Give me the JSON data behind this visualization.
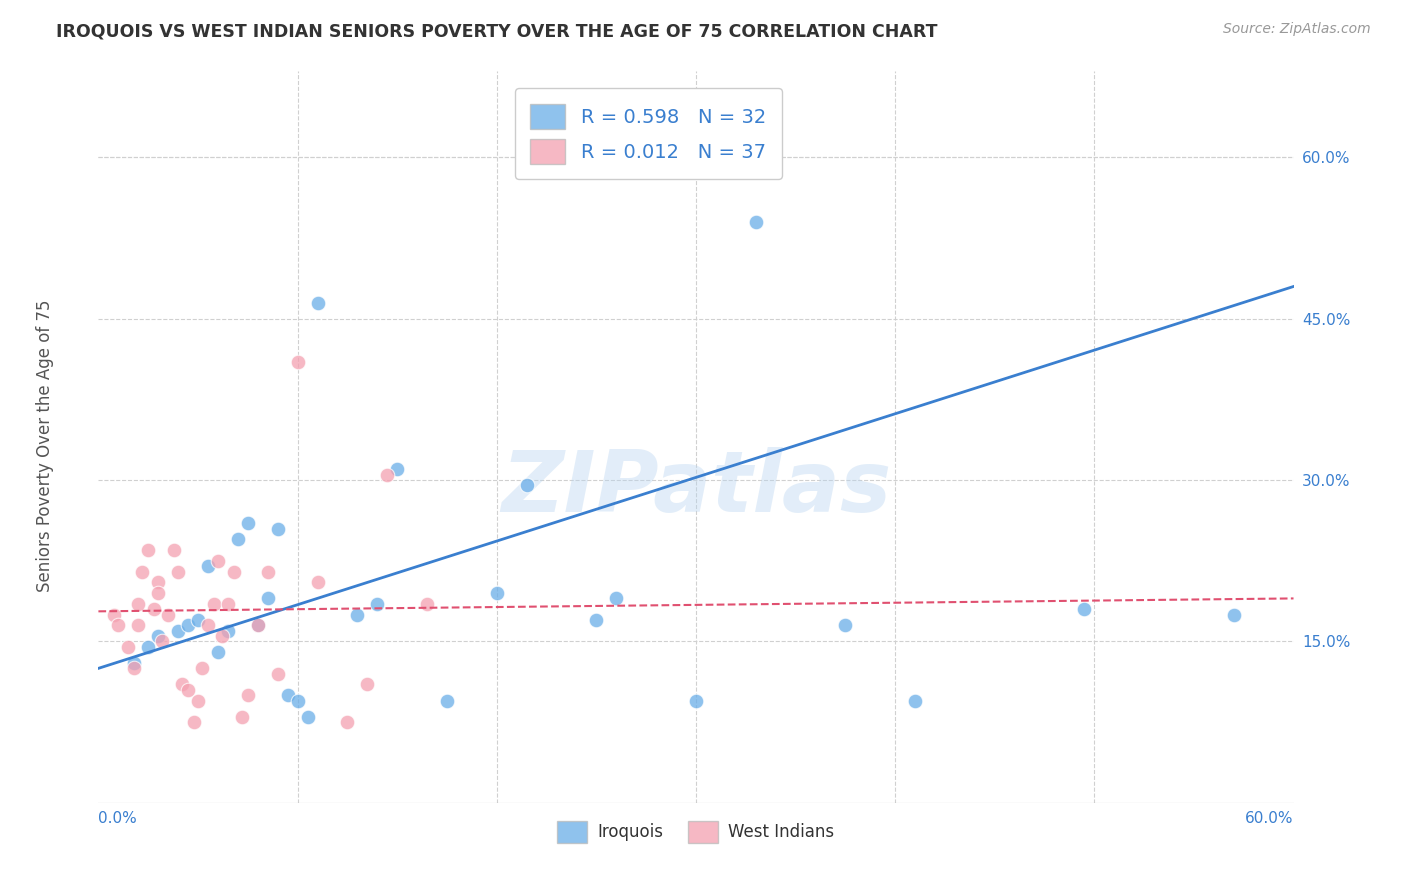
{
  "title": "IROQUOIS VS WEST INDIAN SENIORS POVERTY OVER THE AGE OF 75 CORRELATION CHART",
  "source": "Source: ZipAtlas.com",
  "ylabel": "Seniors Poverty Over the Age of 75",
  "xlim": [
    0.0,
    0.6
  ],
  "ylim": [
    0.0,
    0.68
  ],
  "xtick_positions": [
    0.0,
    0.6
  ],
  "xtick_labels": [
    "0.0%",
    "60.0%"
  ],
  "ytick_positions": [
    0.15,
    0.3,
    0.45,
    0.6
  ],
  "ytick_labels": [
    "15.0%",
    "30.0%",
    "45.0%",
    "60.0%"
  ],
  "grid_yticks": [
    0.15,
    0.3,
    0.45,
    0.6
  ],
  "grid_xticks": [
    0.1,
    0.2,
    0.3,
    0.4,
    0.5
  ],
  "iroquois_color": "#6aaee8",
  "west_indian_color": "#f4a0b0",
  "iroquois_R": 0.598,
  "iroquois_N": 32,
  "west_indian_R": 0.012,
  "west_indian_N": 37,
  "iroquois_scatter_x": [
    0.018,
    0.025,
    0.03,
    0.04,
    0.045,
    0.05,
    0.055,
    0.06,
    0.065,
    0.07,
    0.075,
    0.08,
    0.085,
    0.09,
    0.095,
    0.1,
    0.105,
    0.11,
    0.13,
    0.14,
    0.15,
    0.175,
    0.2,
    0.215,
    0.25,
    0.26,
    0.3,
    0.33,
    0.375,
    0.41,
    0.495,
    0.57
  ],
  "iroquois_scatter_y": [
    0.13,
    0.145,
    0.155,
    0.16,
    0.165,
    0.17,
    0.22,
    0.14,
    0.16,
    0.245,
    0.26,
    0.165,
    0.19,
    0.255,
    0.1,
    0.095,
    0.08,
    0.465,
    0.175,
    0.185,
    0.31,
    0.095,
    0.195,
    0.295,
    0.17,
    0.19,
    0.095,
    0.54,
    0.165,
    0.095,
    0.18,
    0.175
  ],
  "west_indian_scatter_x": [
    0.008,
    0.01,
    0.015,
    0.018,
    0.02,
    0.02,
    0.022,
    0.025,
    0.028,
    0.03,
    0.03,
    0.032,
    0.035,
    0.038,
    0.04,
    0.042,
    0.045,
    0.048,
    0.05,
    0.052,
    0.055,
    0.058,
    0.06,
    0.062,
    0.065,
    0.068,
    0.072,
    0.075,
    0.08,
    0.085,
    0.09,
    0.1,
    0.11,
    0.125,
    0.135,
    0.145,
    0.165
  ],
  "west_indian_scatter_y": [
    0.175,
    0.165,
    0.145,
    0.125,
    0.165,
    0.185,
    0.215,
    0.235,
    0.18,
    0.205,
    0.195,
    0.15,
    0.175,
    0.235,
    0.215,
    0.11,
    0.105,
    0.075,
    0.095,
    0.125,
    0.165,
    0.185,
    0.225,
    0.155,
    0.185,
    0.215,
    0.08,
    0.1,
    0.165,
    0.215,
    0.12,
    0.41,
    0.205,
    0.075,
    0.11,
    0.305,
    0.185
  ],
  "watermark": "ZIPatlas",
  "background_color": "#ffffff",
  "grid_color": "#d0d0d0",
  "iroquois_trend_color": "#3a7fcf",
  "west_indian_trend_color": "#e05070",
  "legend_text_color": "#3a7fcf",
  "axis_text_color": "#3a7fcf",
  "title_color": "#333333",
  "ylabel_color": "#555555"
}
